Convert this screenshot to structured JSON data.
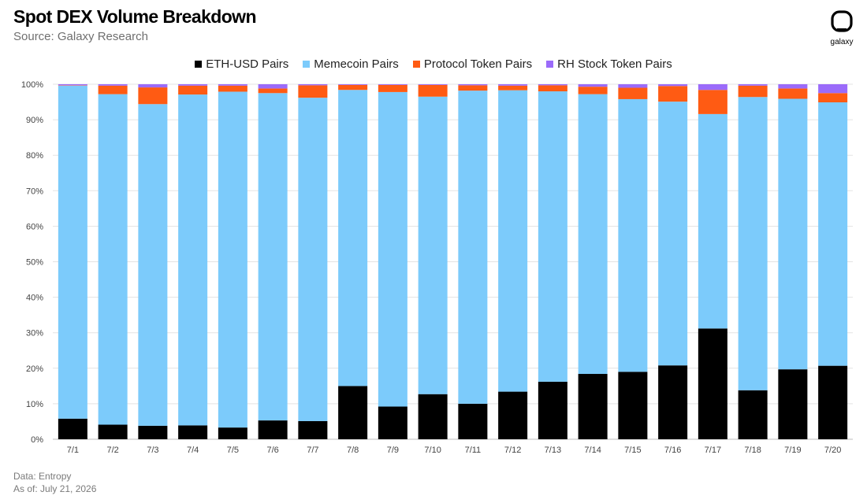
{
  "header": {
    "title": "Spot DEX Volume Breakdown",
    "subtitle": "Source: Galaxy Research",
    "logo_text": "galaxy"
  },
  "footer": {
    "data_note": "Data: Entropy",
    "as_of": "As of: July 21, 2026"
  },
  "colors": {
    "eth_usd": "#000000",
    "memecoin": "#7ccbfb",
    "protocol": "#ff5b13",
    "rh_stock": "#9b6bfa",
    "grid": "#e3e3e3"
  },
  "chart_data": {
    "type": "bar",
    "stacked": true,
    "categories": [
      "7/1",
      "7/2",
      "7/3",
      "7/4",
      "7/5",
      "7/6",
      "7/7",
      "7/8",
      "7/9",
      "7/10",
      "7/11",
      "7/12",
      "7/13",
      "7/14",
      "7/15",
      "7/16",
      "7/17",
      "7/18",
      "7/19",
      "7/20"
    ],
    "series": [
      {
        "name": "ETH-USD Pairs",
        "color": "#000000",
        "values": [
          5.8,
          4.1,
          3.8,
          3.9,
          3.3,
          5.3,
          5.1,
          15.0,
          9.2,
          12.7,
          10.0,
          13.4,
          16.2,
          18.4,
          19.0,
          20.8,
          31.2,
          13.8,
          19.7,
          20.7
        ]
      },
      {
        "name": "Memecoin Pairs",
        "color": "#7ccbfb",
        "values": [
          93.8,
          93.1,
          90.6,
          93.2,
          94.6,
          92.2,
          91.1,
          83.4,
          88.6,
          83.8,
          88.2,
          84.9,
          81.8,
          78.8,
          76.8,
          74.3,
          60.4,
          82.6,
          76.2,
          74.2
        ]
      },
      {
        "name": "Protocol Token Pairs",
        "color": "#ff5b13",
        "values": [
          0.1,
          2.4,
          4.7,
          2.5,
          1.7,
          1.3,
          3.5,
          1.4,
          2.0,
          3.3,
          1.5,
          1.3,
          1.7,
          2.1,
          3.2,
          4.4,
          6.8,
          3.2,
          2.9,
          2.6
        ]
      },
      {
        "name": "RH Stock Token Pairs",
        "color": "#9b6bfa",
        "values": [
          0.3,
          0.4,
          0.9,
          0.4,
          0.4,
          1.2,
          0.3,
          0.2,
          0.2,
          0.2,
          0.3,
          0.4,
          0.3,
          0.7,
          1.0,
          0.5,
          1.6,
          0.4,
          1.2,
          2.5
        ]
      }
    ],
    "ylim": [
      0,
      100
    ],
    "yticks": [
      "0%",
      "10%",
      "20%",
      "30%",
      "40%",
      "50%",
      "60%",
      "70%",
      "80%",
      "90%",
      "100%"
    ],
    "grid": true,
    "legend": "top-center"
  }
}
